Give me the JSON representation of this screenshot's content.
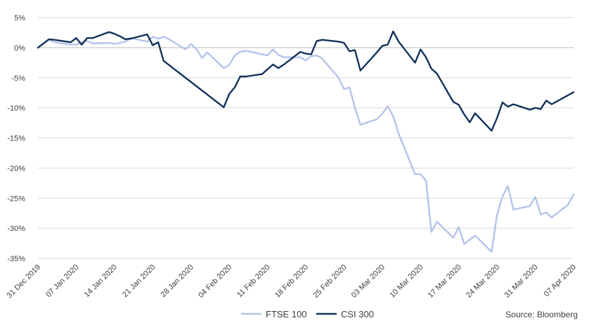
{
  "chart_data": {
    "type": "line",
    "title": "",
    "xlabel": "",
    "ylabel": "",
    "x_ticks": [
      "31 Dec 2019",
      "07 Jan 2020",
      "14 Jan 2020",
      "21 Jan 2020",
      "28 Jan 2020",
      "04 Feb 2020",
      "11 Feb 2020",
      "18 Feb 2020",
      "25 Feb 2020",
      "03 Mar 2020",
      "10 Mar 2020",
      "17 Mar 2020",
      "24 Mar 2020",
      "31 Mar 2020",
      "07 Apr 2020"
    ],
    "y_ticks": [
      "5%",
      "0%",
      "-5%",
      "-10%",
      "-15%",
      "-20%",
      "-25%",
      "-30%",
      "-35%"
    ],
    "xlim": [
      "2019-12-31",
      "2020-04-07"
    ],
    "ylim": [
      -35,
      5
    ],
    "grid": "horizontal",
    "legend_position": "bottom",
    "source": "Source: Bloomberg",
    "series": [
      {
        "name": "FTSE 100",
        "color": "#b4c3ea",
        "points": [
          [
            "2019-12-31",
            0
          ],
          [
            "2020-01-02",
            1.3
          ],
          [
            "2020-01-03",
            0.9
          ],
          [
            "2020-01-06",
            0.5
          ],
          [
            "2020-01-07",
            0.5
          ],
          [
            "2020-01-08",
            0.9
          ],
          [
            "2020-01-09",
            1.1
          ],
          [
            "2020-01-10",
            0.7
          ],
          [
            "2020-01-13",
            0.8
          ],
          [
            "2020-01-14",
            0.6
          ],
          [
            "2020-01-15",
            0.8
          ],
          [
            "2020-01-16",
            1.0
          ],
          [
            "2020-01-17",
            1.6
          ],
          [
            "2020-01-20",
            1.0
          ],
          [
            "2020-01-21",
            1.8
          ],
          [
            "2020-01-22",
            1.5
          ],
          [
            "2020-01-23",
            1.8
          ],
          [
            "2020-01-24",
            1.4
          ],
          [
            "2020-01-27",
            -0.3
          ],
          [
            "2020-01-28",
            0.6
          ],
          [
            "2020-01-29",
            -0.2
          ],
          [
            "2020-01-30",
            -1.7
          ],
          [
            "2020-01-31",
            -0.8
          ],
          [
            "2020-02-03",
            -3.4
          ],
          [
            "2020-02-04",
            -2.9
          ],
          [
            "2020-02-05",
            -1.3
          ],
          [
            "2020-02-06",
            -0.7
          ],
          [
            "2020-02-07",
            -0.5
          ],
          [
            "2020-02-10",
            -1.1
          ],
          [
            "2020-02-11",
            -1.3
          ],
          [
            "2020-02-12",
            -0.3
          ],
          [
            "2020-02-13",
            -1.2
          ],
          [
            "2020-02-14",
            -1.6
          ],
          [
            "2020-02-17",
            -1.6
          ],
          [
            "2020-02-18",
            -2.1
          ],
          [
            "2020-02-19",
            -1.4
          ],
          [
            "2020-02-20",
            -1.3
          ],
          [
            "2020-02-21",
            -1.8
          ],
          [
            "2020-02-24",
            -5.0
          ],
          [
            "2020-02-25",
            -6.9
          ],
          [
            "2020-02-26",
            -6.6
          ],
          [
            "2020-02-27",
            -10.0
          ],
          [
            "2020-02-28",
            -12.8
          ],
          [
            "2020-03-02",
            -11.9
          ],
          [
            "2020-03-03",
            -11.0
          ],
          [
            "2020-03-04",
            -9.7
          ],
          [
            "2020-03-05",
            -11.4
          ],
          [
            "2020-03-06",
            -14.3
          ],
          [
            "2020-03-09",
            -21.0
          ],
          [
            "2020-03-10",
            -21.0
          ],
          [
            "2020-03-11",
            -22.1
          ],
          [
            "2020-03-12",
            -30.6
          ],
          [
            "2020-03-13",
            -28.9
          ],
          [
            "2020-03-16",
            -31.6
          ],
          [
            "2020-03-17",
            -29.8
          ],
          [
            "2020-03-18",
            -32.6
          ],
          [
            "2020-03-19",
            -31.9
          ],
          [
            "2020-03-20",
            -31.2
          ],
          [
            "2020-03-23",
            -33.9
          ],
          [
            "2020-03-24",
            -27.8
          ],
          [
            "2020-03-25",
            -24.7
          ],
          [
            "2020-03-26",
            -23.0
          ],
          [
            "2020-03-27",
            -26.9
          ],
          [
            "2020-03-30",
            -26.3
          ],
          [
            "2020-03-31",
            -24.8
          ],
          [
            "2020-04-01",
            -27.7
          ],
          [
            "2020-04-02",
            -27.4
          ],
          [
            "2020-04-03",
            -28.2
          ],
          [
            "2020-04-06",
            -26.1
          ],
          [
            "2020-04-07",
            -24.4
          ]
        ]
      },
      {
        "name": "CSI 300",
        "color": "#13325b",
        "points": [
          [
            "2019-12-31",
            0
          ],
          [
            "2020-01-02",
            1.4
          ],
          [
            "2020-01-03",
            1.3
          ],
          [
            "2020-01-06",
            0.9
          ],
          [
            "2020-01-07",
            1.6
          ],
          [
            "2020-01-08",
            0.5
          ],
          [
            "2020-01-09",
            1.6
          ],
          [
            "2020-01-10",
            1.6
          ],
          [
            "2020-01-13",
            2.6
          ],
          [
            "2020-01-14",
            2.3
          ],
          [
            "2020-01-15",
            1.9
          ],
          [
            "2020-01-16",
            1.4
          ],
          [
            "2020-01-17",
            1.5
          ],
          [
            "2020-01-20",
            2.2
          ],
          [
            "2020-01-21",
            0.4
          ],
          [
            "2020-01-22",
            0.9
          ],
          [
            "2020-01-23",
            -2.2
          ],
          [
            "2020-02-03",
            -9.9
          ],
          [
            "2020-02-04",
            -7.7
          ],
          [
            "2020-02-05",
            -6.6
          ],
          [
            "2020-02-06",
            -4.8
          ],
          [
            "2020-02-07",
            -4.8
          ],
          [
            "2020-02-10",
            -4.4
          ],
          [
            "2020-02-11",
            -3.6
          ],
          [
            "2020-02-12",
            -2.8
          ],
          [
            "2020-02-13",
            -3.4
          ],
          [
            "2020-02-14",
            -2.8
          ],
          [
            "2020-02-17",
            -0.7
          ],
          [
            "2020-02-18",
            -1.0
          ],
          [
            "2020-02-19",
            -1.1
          ],
          [
            "2020-02-20",
            1.1
          ],
          [
            "2020-02-21",
            1.3
          ],
          [
            "2020-02-24",
            1.0
          ],
          [
            "2020-02-25",
            0.8
          ],
          [
            "2020-02-26",
            -0.6
          ],
          [
            "2020-02-27",
            -0.4
          ],
          [
            "2020-02-28",
            -3.8
          ],
          [
            "2020-03-02",
            -0.8
          ],
          [
            "2020-03-03",
            0.3
          ],
          [
            "2020-03-04",
            0.5
          ],
          [
            "2020-03-05",
            2.7
          ],
          [
            "2020-03-06",
            1.0
          ],
          [
            "2020-03-09",
            -2.5
          ],
          [
            "2020-03-10",
            -0.3
          ],
          [
            "2020-03-11",
            -1.6
          ],
          [
            "2020-03-12",
            -3.5
          ],
          [
            "2020-03-13",
            -4.3
          ],
          [
            "2020-03-16",
            -9.0
          ],
          [
            "2020-03-17",
            -9.5
          ],
          [
            "2020-03-18",
            -11.1
          ],
          [
            "2020-03-19",
            -12.4
          ],
          [
            "2020-03-20",
            -10.9
          ],
          [
            "2020-03-23",
            -13.8
          ],
          [
            "2020-03-24",
            -11.7
          ],
          [
            "2020-03-25",
            -9.1
          ],
          [
            "2020-03-26",
            -9.8
          ],
          [
            "2020-03-27",
            -9.4
          ],
          [
            "2020-03-30",
            -10.3
          ],
          [
            "2020-03-31",
            -10.0
          ],
          [
            "2020-04-01",
            -10.2
          ],
          [
            "2020-04-02",
            -8.8
          ],
          [
            "2020-04-03",
            -9.4
          ],
          [
            "2020-04-07",
            -7.4
          ]
        ]
      }
    ]
  }
}
